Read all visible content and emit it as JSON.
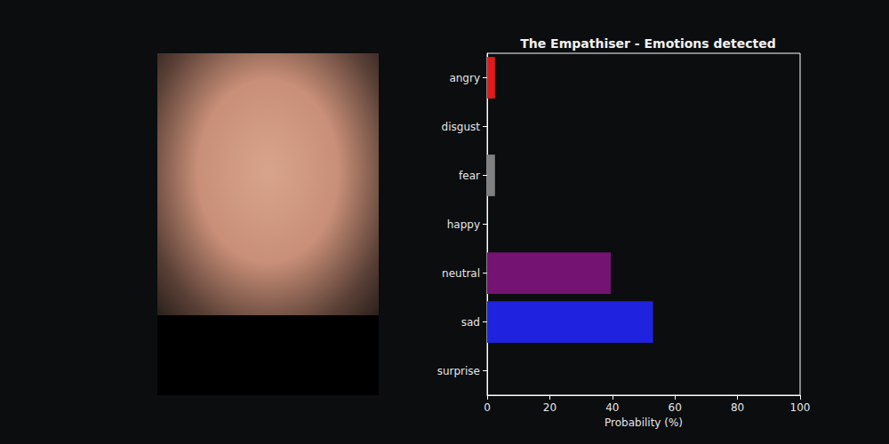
{
  "chart_data": {
    "type": "bar",
    "orientation": "horizontal",
    "title": "The Empathiser - Emotions detected",
    "xlabel": "Probability (%)",
    "categories": [
      "angry",
      "disgust",
      "fear",
      "happy",
      "neutral",
      "sad",
      "surprise"
    ],
    "values": [
      2.5,
      0,
      2.5,
      0,
      39.5,
      53,
      0
    ],
    "colors": [
      "#e31a1c",
      "#2ca02c",
      "#808080",
      "#ffd700",
      "#751372",
      "#1f23e0",
      "#ff7f0e"
    ],
    "xlim": [
      0,
      100
    ],
    "xticks": [
      0,
      20,
      40,
      60,
      80,
      100
    ],
    "grid": false
  }
}
